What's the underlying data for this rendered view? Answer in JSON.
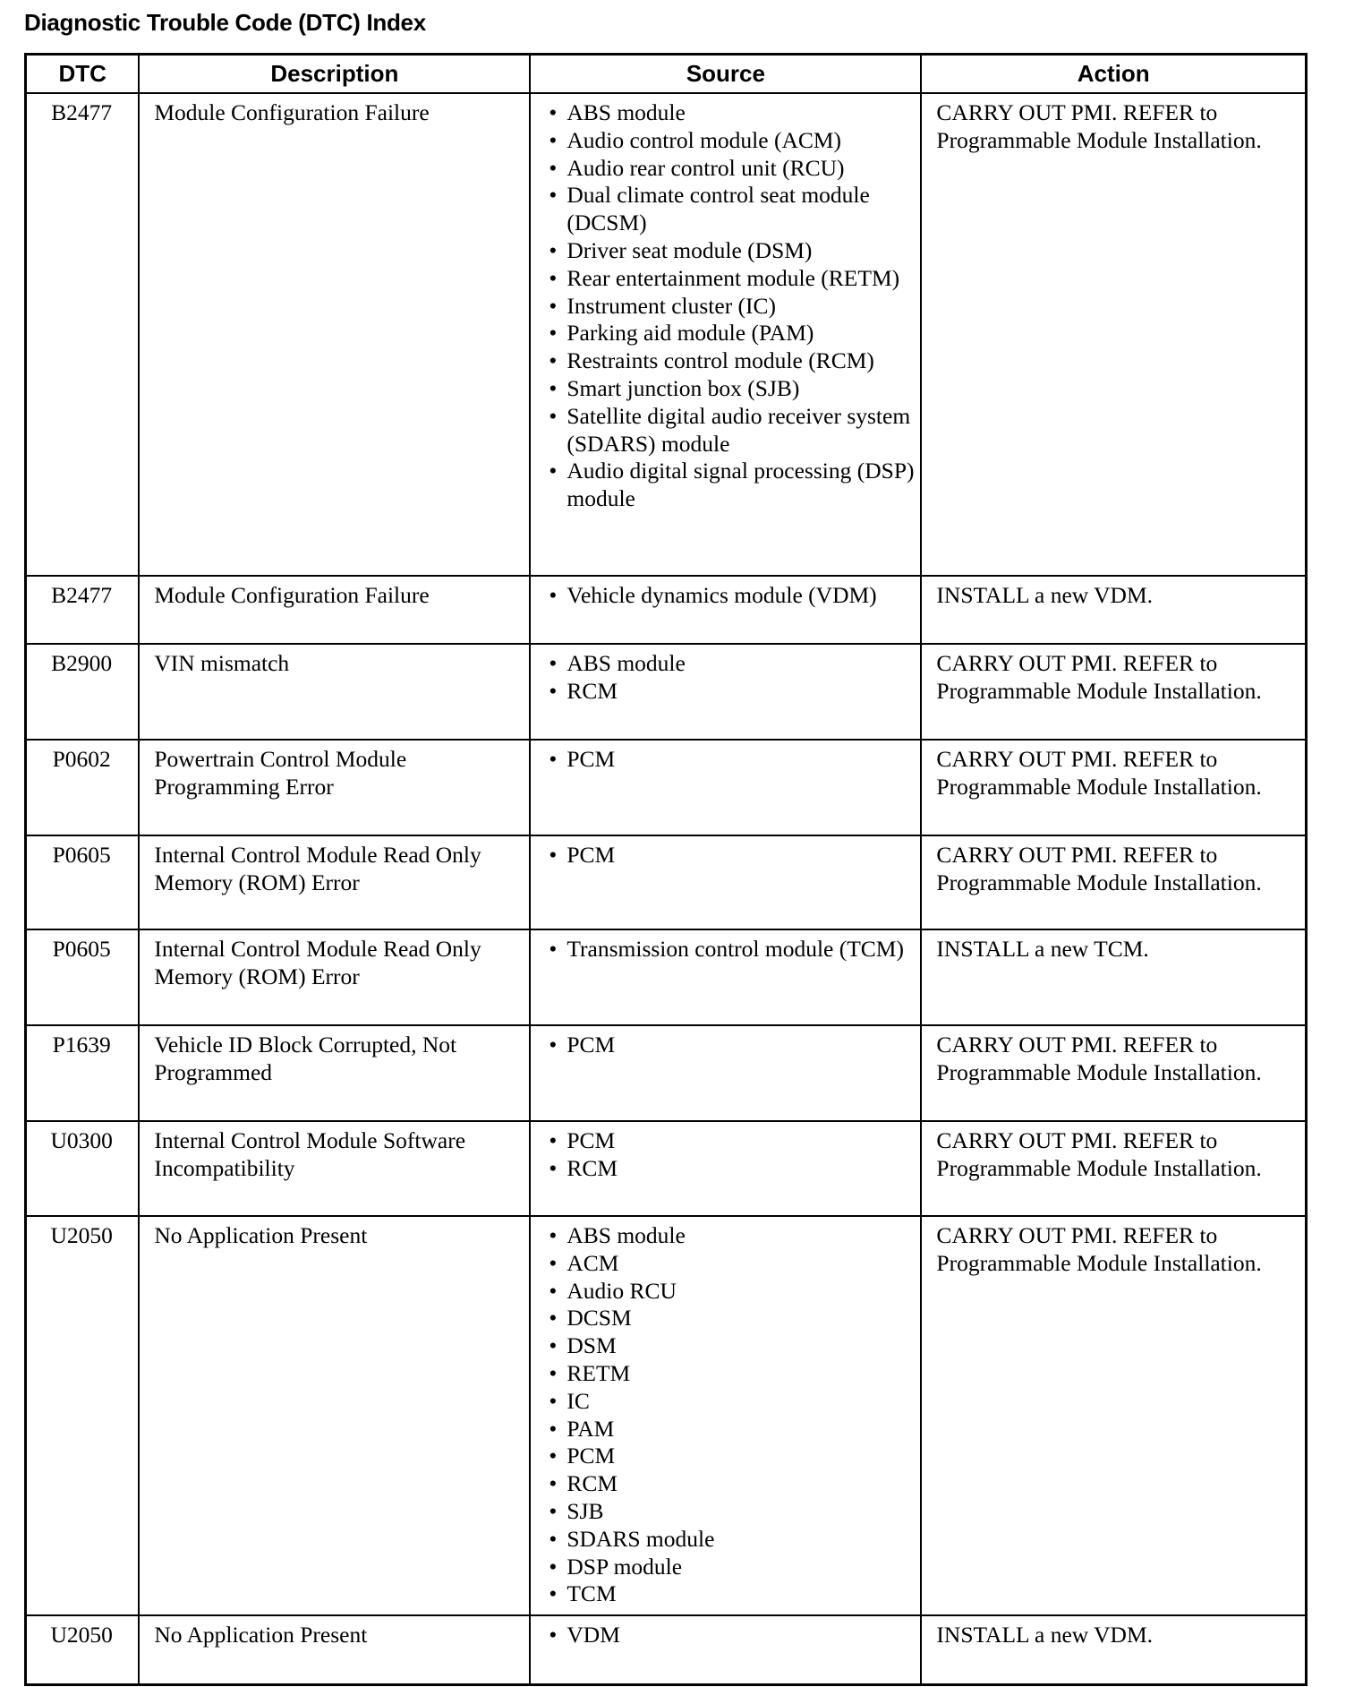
{
  "title": "Diagnostic Trouble Code (DTC) Index",
  "headers": [
    "DTC",
    "Description",
    "Source",
    "Action"
  ],
  "rows": [
    {
      "dtc": "B2477",
      "description": "Module Configuration Failure",
      "source": [
        "ABS module",
        "Audio control module (ACM)",
        "Audio rear control unit (RCU)",
        "Dual climate control seat module (DCSM)",
        "Driver seat module (DSM)",
        "Rear entertainment module (RETM)",
        "Instrument cluster (IC)",
        "Parking aid module (PAM)",
        "Restraints control module (RCM)",
        "Smart junction box (SJB)",
        "Satellite digital audio receiver system (SDARS) module",
        "Audio digital signal processing (DSP) module"
      ],
      "action": "CARRY OUT PMI. REFER to Programmable Module Installation."
    },
    {
      "dtc": "B2477",
      "description": "Module Configuration Failure",
      "source": [
        "Vehicle dynamics module (VDM)"
      ],
      "action": "INSTALL a new VDM."
    },
    {
      "dtc": "B2900",
      "description": "VIN mismatch",
      "source": [
        "ABS module",
        "RCM"
      ],
      "action": "CARRY OUT PMI. REFER to Programmable Module Installation."
    },
    {
      "dtc": "P0602",
      "description": "Powertrain Control Module Programming Error",
      "source": [
        "PCM"
      ],
      "action": "CARRY OUT PMI. REFER to Programmable Module Installation."
    },
    {
      "dtc": "P0605",
      "description": "Internal Control Module Read Only Memory (ROM) Error",
      "source": [
        "PCM"
      ],
      "action": "CARRY OUT PMI. REFER to Programmable Module Installation."
    },
    {
      "dtc": "P0605",
      "description": "Internal Control Module Read Only Memory (ROM) Error",
      "source": [
        "Transmission control module (TCM)"
      ],
      "action": "INSTALL a new TCM."
    },
    {
      "dtc": "P1639",
      "description": "Vehicle ID Block Corrupted, Not Programmed",
      "source": [
        "PCM"
      ],
      "action": "CARRY OUT PMI. REFER to Programmable Module Installation."
    },
    {
      "dtc": "U0300",
      "description": "Internal Control Module Software Incompatibility",
      "source": [
        "PCM",
        "RCM"
      ],
      "action": "CARRY OUT PMI. REFER to Programmable Module Installation."
    },
    {
      "dtc": "U2050",
      "description": "No Application Present",
      "source": [
        "ABS module",
        "ACM",
        "Audio RCU",
        "DCSM",
        "DSM",
        "RETM",
        "IC",
        "PAM",
        "PCM",
        "RCM",
        "SJB",
        "SDARS module",
        "DSP module",
        "TCM"
      ],
      "action": "CARRY OUT PMI. REFER to Programmable Module Installation."
    },
    {
      "dtc": "U2050",
      "description": "No Application Present",
      "source": [
        "VDM"
      ],
      "action": "INSTALL a new VDM."
    }
  ]
}
